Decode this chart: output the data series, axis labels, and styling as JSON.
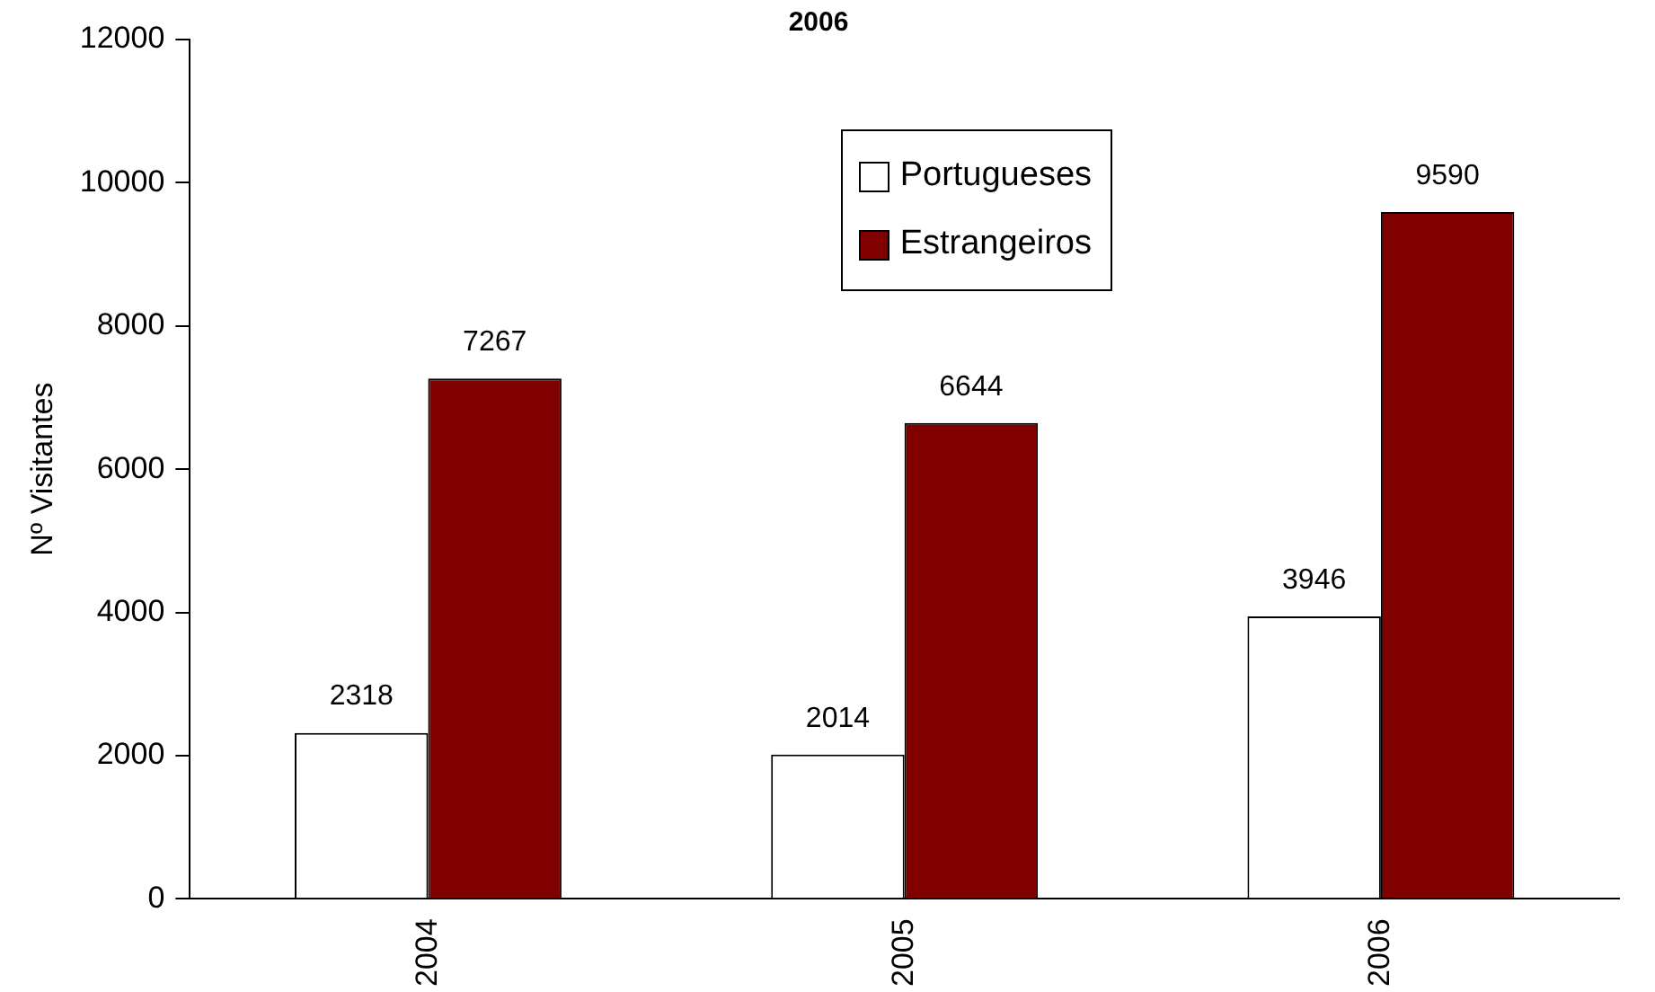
{
  "chart_data": {
    "type": "bar",
    "title": "2006",
    "ylabel": "Nº Visitantes",
    "categories": [
      "2004",
      "2005",
      "2006"
    ],
    "series": [
      {
        "name": "Portugueses",
        "color": "#ffffff",
        "values": [
          2318,
          2014,
          3946
        ]
      },
      {
        "name": "Estrangeiros",
        "color": "#800000",
        "values": [
          7267,
          6644,
          9590
        ]
      }
    ],
    "ylim": [
      0,
      12000
    ],
    "yticks": [
      0,
      2000,
      4000,
      6000,
      8000,
      10000,
      12000
    ],
    "grid": false,
    "legend": "top",
    "data_labels": true
  }
}
